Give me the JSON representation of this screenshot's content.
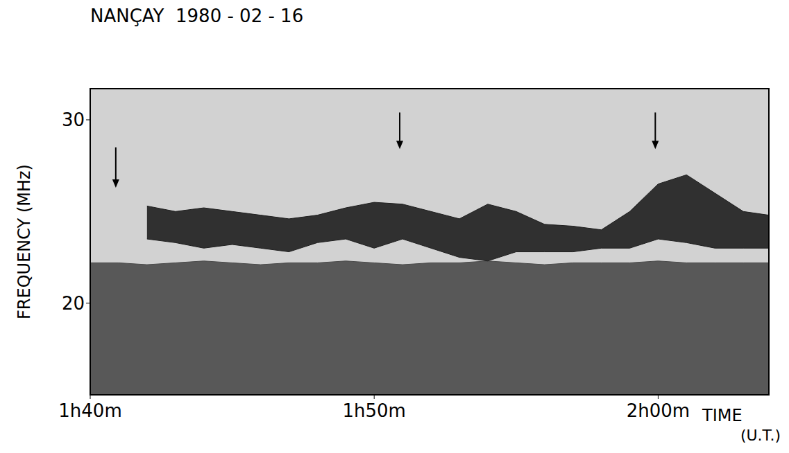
{
  "chart_data": {
    "type": "range_area",
    "title": "NANÇAY  1980 - 02 - 16",
    "y_label": "FREQUENCY (MHz)",
    "x_label": "TIME (U.T.)",
    "x": [
      100,
      101,
      102,
      103,
      104,
      105,
      106,
      107,
      108,
      109,
      110,
      111,
      112,
      113,
      114,
      115,
      116,
      117,
      118,
      119,
      120,
      121,
      122,
      123,
      123.9
    ],
    "series": [
      {
        "color": "#4a4a4a",
        "low": [
          15,
          15,
          15,
          15,
          15,
          15,
          15,
          15,
          15,
          15,
          15,
          15,
          15,
          15,
          15,
          15,
          15,
          15,
          15,
          15,
          15,
          15,
          15,
          15,
          15
        ],
        "high": [
          22.2,
          22.2,
          22.1,
          22.2,
          22.3,
          22.2,
          22.1,
          22.2,
          22.2,
          22.3,
          22.2,
          22.1,
          22.2,
          22.2,
          22.3,
          22.2,
          22.1,
          22.2,
          22.2,
          22.2,
          22.3,
          22.2,
          22.2,
          22.2,
          22.2
        ]
      },
      {
        "color": "#1e1e1e",
        "low": [
          null,
          null,
          23.5,
          23.3,
          23.0,
          23.2,
          23.0,
          22.8,
          23.3,
          23.5,
          23.0,
          23.5,
          23.0,
          22.5,
          22.3,
          22.8,
          22.8,
          22.8,
          23.0,
          23.0,
          23.5,
          23.3,
          23.0,
          23.0,
          23.0
        ],
        "high": [
          null,
          null,
          25.3,
          25.0,
          25.2,
          25.0,
          24.8,
          24.6,
          24.8,
          25.2,
          25.5,
          25.4,
          25.0,
          24.6,
          25.4,
          25.0,
          24.3,
          24.2,
          24.0,
          25.0,
          26.5,
          27.0,
          26.0,
          25.0,
          24.8
        ]
      }
    ],
    "arrows": [
      {
        "x": 100.9,
        "y_start": 28.5,
        "y_end": 26.3
      },
      {
        "x": 110.9,
        "y_start": 30.4,
        "y_end": 28.4
      },
      {
        "x": 119.9,
        "y_start": 30.4,
        "y_end": 28.4
      }
    ],
    "xlim": [
      100,
      123.9
    ],
    "ylim": [
      15,
      31.7
    ],
    "xticks": [
      {
        "value": 100,
        "label": "1h40m"
      },
      {
        "value": 110,
        "label": "1h50m"
      },
      {
        "value": 120,
        "label": "2h00m"
      }
    ],
    "yticks": [
      20,
      30
    ],
    "grid": false
  }
}
